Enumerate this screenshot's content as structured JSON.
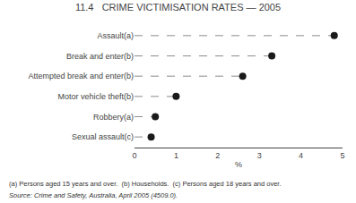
{
  "chart_data": {
    "type": "dot",
    "title": "11.4   CRIME VICTIMISATION RATES — 2005",
    "categories": [
      "Sexual assault(c)",
      "Robbery(a)",
      "Motor vehicle theft(b)",
      "Attempted break and enter(b)",
      "Break and enter(b)",
      "Assault(a)"
    ],
    "values": [
      0.4,
      0.5,
      1.0,
      2.6,
      3.3,
      4.8
    ],
    "xlabel": "%",
    "xlim": [
      0,
      5
    ],
    "xticks": [
      0,
      1,
      2,
      3,
      4,
      5
    ],
    "color": "#1a1a1a",
    "line_style": "dashed",
    "grid": false,
    "annotations": [
      "(a) Persons aged 15 years and over.  (b) Households.  (c) Persons aged 18 years and over.",
      "Source: Crime and Safety, Australia, April 2005 (4509.0)."
    ]
  }
}
